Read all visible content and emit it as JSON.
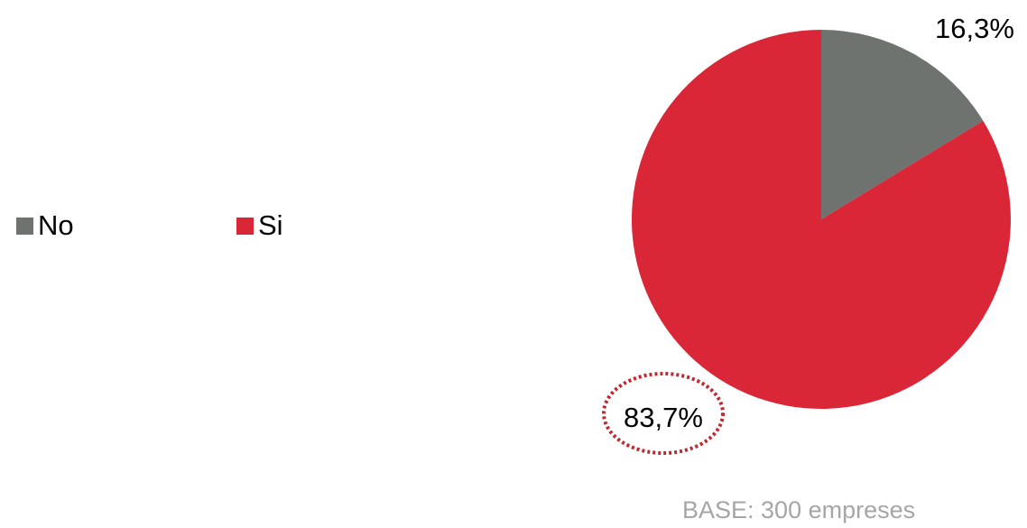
{
  "chart_data": {
    "type": "pie",
    "categories": [
      "No",
      "Si"
    ],
    "values": [
      16.3,
      83.7
    ],
    "data_labels": [
      "16,3%",
      "83,7%"
    ],
    "colors": [
      "#6f7370",
      "#d92738"
    ],
    "legend": {
      "placement": "left",
      "entries": [
        "No",
        "Si"
      ]
    },
    "highlight": {
      "label": "83,7%",
      "style": "dotted-ellipse",
      "color": "#c1272d"
    }
  },
  "footnote": "BASE: 300 empreses"
}
